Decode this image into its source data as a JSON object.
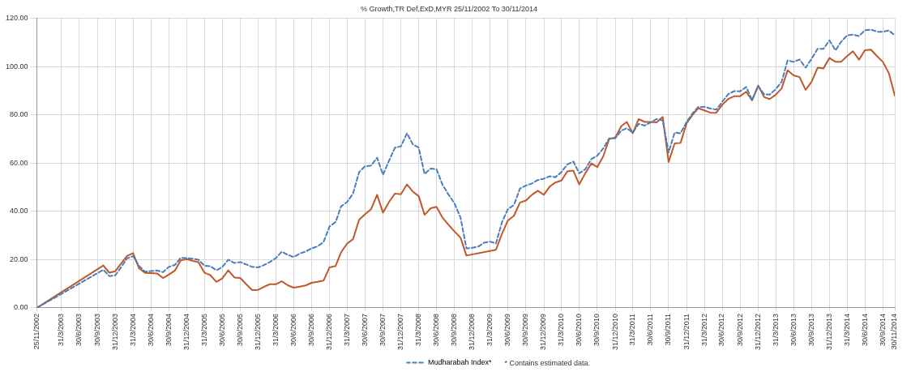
{
  "chart_data": {
    "type": "line",
    "title": "% Growth,TR Def,ExD,MYR 25/11/2002 To 30/11/2014",
    "x": [
      "2002-11-25",
      "2003-10-31",
      "2003-11-30",
      "2003-12-31",
      "2004-01-31",
      "2004-02-29",
      "2004-03-31",
      "2004-04-30",
      "2004-05-31",
      "2004-06-30",
      "2004-07-31",
      "2004-08-31",
      "2004-09-30",
      "2004-10-31",
      "2004-11-30",
      "2004-12-31",
      "2005-01-31",
      "2005-02-28",
      "2005-03-31",
      "2005-04-30",
      "2005-05-31",
      "2005-06-30",
      "2005-07-31",
      "2005-08-31",
      "2005-09-30",
      "2005-10-31",
      "2005-11-30",
      "2005-12-31",
      "2006-01-31",
      "2006-02-28",
      "2006-03-31",
      "2006-04-30",
      "2006-05-31",
      "2006-06-30",
      "2006-07-31",
      "2006-08-31",
      "2006-09-30",
      "2006-10-31",
      "2006-11-30",
      "2006-12-31",
      "2007-01-31",
      "2007-02-28",
      "2007-03-31",
      "2007-04-30",
      "2007-05-31",
      "2007-06-30",
      "2007-07-31",
      "2007-08-31",
      "2007-09-30",
      "2007-10-31",
      "2007-11-30",
      "2007-12-31",
      "2008-01-31",
      "2008-02-29",
      "2008-03-31",
      "2008-04-30",
      "2008-05-31",
      "2008-06-30",
      "2008-07-31",
      "2008-08-31",
      "2008-09-30",
      "2008-10-31",
      "2008-11-30",
      "2008-12-31",
      "2009-01-31",
      "2009-02-28",
      "2009-03-31",
      "2009-04-30",
      "2009-05-31",
      "2009-06-30",
      "2009-07-31",
      "2009-08-31",
      "2009-09-30",
      "2009-10-31",
      "2009-11-30",
      "2009-12-31",
      "2010-01-31",
      "2010-02-28",
      "2010-03-31",
      "2010-04-30",
      "2010-05-31",
      "2010-06-30",
      "2010-07-31",
      "2010-08-31",
      "2010-09-30",
      "2010-10-31",
      "2010-11-30",
      "2010-12-31",
      "2011-01-31",
      "2011-02-28",
      "2011-03-31",
      "2011-04-30",
      "2011-05-31",
      "2011-06-30",
      "2011-07-31",
      "2011-08-31",
      "2011-09-30",
      "2011-10-31",
      "2011-11-30",
      "2011-12-31",
      "2012-01-31",
      "2012-02-29",
      "2012-03-31",
      "2012-04-30",
      "2012-05-31",
      "2012-06-30",
      "2012-07-31",
      "2012-08-31",
      "2012-09-30",
      "2012-10-31",
      "2012-11-30",
      "2012-12-31",
      "2013-01-31",
      "2013-02-28",
      "2013-03-31",
      "2013-04-30",
      "2013-05-31",
      "2013-06-30",
      "2013-07-31",
      "2013-08-31",
      "2013-09-30",
      "2013-10-31",
      "2013-11-30",
      "2013-12-31",
      "2014-01-31",
      "2014-02-28",
      "2014-03-31",
      "2014-04-30",
      "2014-05-31",
      "2014-06-30",
      "2014-07-31",
      "2014-08-31",
      "2014-09-30",
      "2014-10-31",
      "2014-11-30"
    ],
    "series": [
      {
        "name": "Mudharabah Index*",
        "color": "#4a7ebb",
        "line_style": "dashed",
        "values": [
          0,
          15.8,
          13.2,
          13.5,
          17,
          20.5,
          21.5,
          17.5,
          15,
          15.3,
          15.5,
          14.8,
          17,
          17.8,
          20.8,
          20.6,
          20.4,
          20,
          17.5,
          17.3,
          15.6,
          16.9,
          20,
          18.6,
          19,
          18,
          17,
          16.8,
          17.8,
          19,
          20.6,
          23.3,
          22,
          21.1,
          22.5,
          23.4,
          24.7,
          25.5,
          27.3,
          33.8,
          35.6,
          42.1,
          43.9,
          47.4,
          56.3,
          58.7,
          59,
          62.3,
          55.2,
          61,
          66.4,
          67,
          72.4,
          67.9,
          66.4,
          55.5,
          57.8,
          57.5,
          51,
          46.9,
          43.3,
          37.4,
          24.7,
          24.9,
          25.5,
          27,
          27.5,
          26.7,
          35.6,
          40.9,
          42.7,
          49.5,
          50.7,
          51.6,
          53,
          53.6,
          54.6,
          54.2,
          56.3,
          59.5,
          60.7,
          55.8,
          57.5,
          61.7,
          63.1,
          66.1,
          70.3,
          70.3,
          73.5,
          74.5,
          72.7,
          76.3,
          75.6,
          76.9,
          78.3,
          77.7,
          64.4,
          72.7,
          72.4,
          77.1,
          80.7,
          83.3,
          83.4,
          82.7,
          82.2,
          85.4,
          88.6,
          89.9,
          89.8,
          91.6,
          86.2,
          91.9,
          88.6,
          88.4,
          90.7,
          93.7,
          102.6,
          102,
          103,
          99.6,
          103.2,
          107.4,
          107.4,
          110.9,
          106.8,
          110.3,
          113,
          113.3,
          112.7,
          115.1,
          115.4,
          114.5,
          114.5,
          115,
          113
        ]
      },
      {
        "color": "#c0582a",
        "line_style": "solid",
        "values": [
          0,
          17.6,
          14.6,
          15.2,
          18.5,
          21.5,
          22.7,
          16.5,
          14.5,
          14.4,
          14.3,
          12.4,
          13.8,
          15.5,
          19.7,
          20.2,
          19.5,
          19,
          14.6,
          13.6,
          10.8,
          12.2,
          15.6,
          12.6,
          12.4,
          9.8,
          7.4,
          7.5,
          8.8,
          9.8,
          9.8,
          11,
          9.4,
          8.4,
          8.8,
          9.3,
          10.4,
          10.8,
          11.3,
          16.8,
          17.4,
          23.1,
          26.7,
          28.5,
          36.5,
          38.8,
          40.9,
          46.9,
          39.5,
          43.9,
          47.4,
          47.1,
          51.2,
          48.3,
          46.3,
          38.6,
          41.3,
          41.9,
          37.4,
          34.4,
          31.7,
          29.1,
          21.7,
          null,
          null,
          null,
          null,
          24.1,
          30.8,
          36.2,
          38.2,
          43.7,
          44.5,
          46.9,
          48.6,
          46.9,
          50.4,
          52,
          52.8,
          56.6,
          56.9,
          51.2,
          55.8,
          59.9,
          58.4,
          62.9,
          70,
          70.6,
          75.3,
          77.1,
          72.4,
          78.3,
          77.1,
          77.1,
          76.9,
          79.2,
          60.5,
          68.2,
          68.4,
          76.5,
          80.1,
          82.8,
          81.9,
          81,
          80.9,
          84.2,
          86.6,
          87.8,
          87.8,
          89.6,
          86,
          92.2,
          87.4,
          86.6,
          88.4,
          91,
          98.5,
          96.4,
          95.7,
          90.4,
          93.7,
          99.6,
          99.3,
          103.6,
          102,
          102,
          104.4,
          106.4,
          102.9,
          106.8,
          107.1,
          104.4,
          102,
          97.3,
          88
        ]
      }
    ],
    "xlim": [
      "2002-11-25",
      "2014-11-30"
    ],
    "xticks": [
      {
        "value": "2002-11-25",
        "label": "25/11/2002"
      },
      {
        "value": "2003-03-31",
        "label": "31/3/2003"
      },
      {
        "value": "2003-06-30",
        "label": "30/6/2003"
      },
      {
        "value": "2003-09-30",
        "label": "30/9/2003"
      },
      {
        "value": "2003-12-31",
        "label": "31/12/2003"
      },
      {
        "value": "2004-03-31",
        "label": "31/3/2004"
      },
      {
        "value": "2004-06-30",
        "label": "30/6/2004"
      },
      {
        "value": "2004-09-30",
        "label": "30/9/2004"
      },
      {
        "value": "2004-12-31",
        "label": "31/12/2004"
      },
      {
        "value": "2005-03-31",
        "label": "31/3/2005"
      },
      {
        "value": "2005-06-30",
        "label": "30/6/2005"
      },
      {
        "value": "2005-09-30",
        "label": "30/9/2005"
      },
      {
        "value": "2005-12-31",
        "label": "31/12/2005"
      },
      {
        "value": "2006-03-31",
        "label": "31/3/2006"
      },
      {
        "value": "2006-06-30",
        "label": "30/6/2006"
      },
      {
        "value": "2006-09-30",
        "label": "30/9/2006"
      },
      {
        "value": "2006-12-31",
        "label": "31/12/2006"
      },
      {
        "value": "2007-03-31",
        "label": "31/3/2007"
      },
      {
        "value": "2007-06-30",
        "label": "30/6/2007"
      },
      {
        "value": "2007-09-30",
        "label": "30/9/2007"
      },
      {
        "value": "2007-12-31",
        "label": "31/12/2007"
      },
      {
        "value": "2008-03-31",
        "label": "31/3/2008"
      },
      {
        "value": "2008-06-30",
        "label": "30/6/2008"
      },
      {
        "value": "2008-09-30",
        "label": "30/9/2008"
      },
      {
        "value": "2008-12-31",
        "label": "31/12/2008"
      },
      {
        "value": "2009-03-31",
        "label": "31/3/2009"
      },
      {
        "value": "2009-06-30",
        "label": "30/6/2009"
      },
      {
        "value": "2009-09-30",
        "label": "30/9/2009"
      },
      {
        "value": "2009-12-31",
        "label": "31/12/2009"
      },
      {
        "value": "2010-03-31",
        "label": "31/3/2010"
      },
      {
        "value": "2010-06-30",
        "label": "30/6/2010"
      },
      {
        "value": "2010-09-30",
        "label": "30/9/2010"
      },
      {
        "value": "2010-12-31",
        "label": "31/12/2010"
      },
      {
        "value": "2011-03-31",
        "label": "31/3/2011"
      },
      {
        "value": "2011-06-30",
        "label": "30/6/2011"
      },
      {
        "value": "2011-09-30",
        "label": "30/9/2011"
      },
      {
        "value": "2011-12-31",
        "label": "31/12/2011"
      },
      {
        "value": "2012-03-31",
        "label": "31/3/2012"
      },
      {
        "value": "2012-06-30",
        "label": "30/6/2012"
      },
      {
        "value": "2012-09-30",
        "label": "30/9/2012"
      },
      {
        "value": "2012-12-31",
        "label": "31/12/2012"
      },
      {
        "value": "2013-03-31",
        "label": "31/3/2013"
      },
      {
        "value": "2013-06-30",
        "label": "30/6/2013"
      },
      {
        "value": "2013-09-30",
        "label": "30/9/2013"
      },
      {
        "value": "2013-12-31",
        "label": "31/12/2013"
      },
      {
        "value": "2014-03-31",
        "label": "31/3/2014"
      },
      {
        "value": "2014-06-30",
        "label": "30/6/2014"
      },
      {
        "value": "2014-09-30",
        "label": "30/9/2014"
      },
      {
        "value": "2014-11-30",
        "label": "30/11/2014"
      }
    ],
    "ylim": [
      0,
      120
    ],
    "yticks": [
      {
        "value": 0,
        "label": "0.00"
      },
      {
        "value": 20,
        "label": "20.00"
      },
      {
        "value": 40,
        "label": "40.00"
      },
      {
        "value": 60,
        "label": "60.00"
      },
      {
        "value": 80,
        "label": "80.00"
      },
      {
        "value": 100,
        "label": "100.00"
      },
      {
        "value": 120,
        "label": "120.00"
      }
    ],
    "grid": true,
    "legend": "bottom",
    "marker": "none",
    "annotations": [
      "* Contains estimated data."
    ]
  }
}
